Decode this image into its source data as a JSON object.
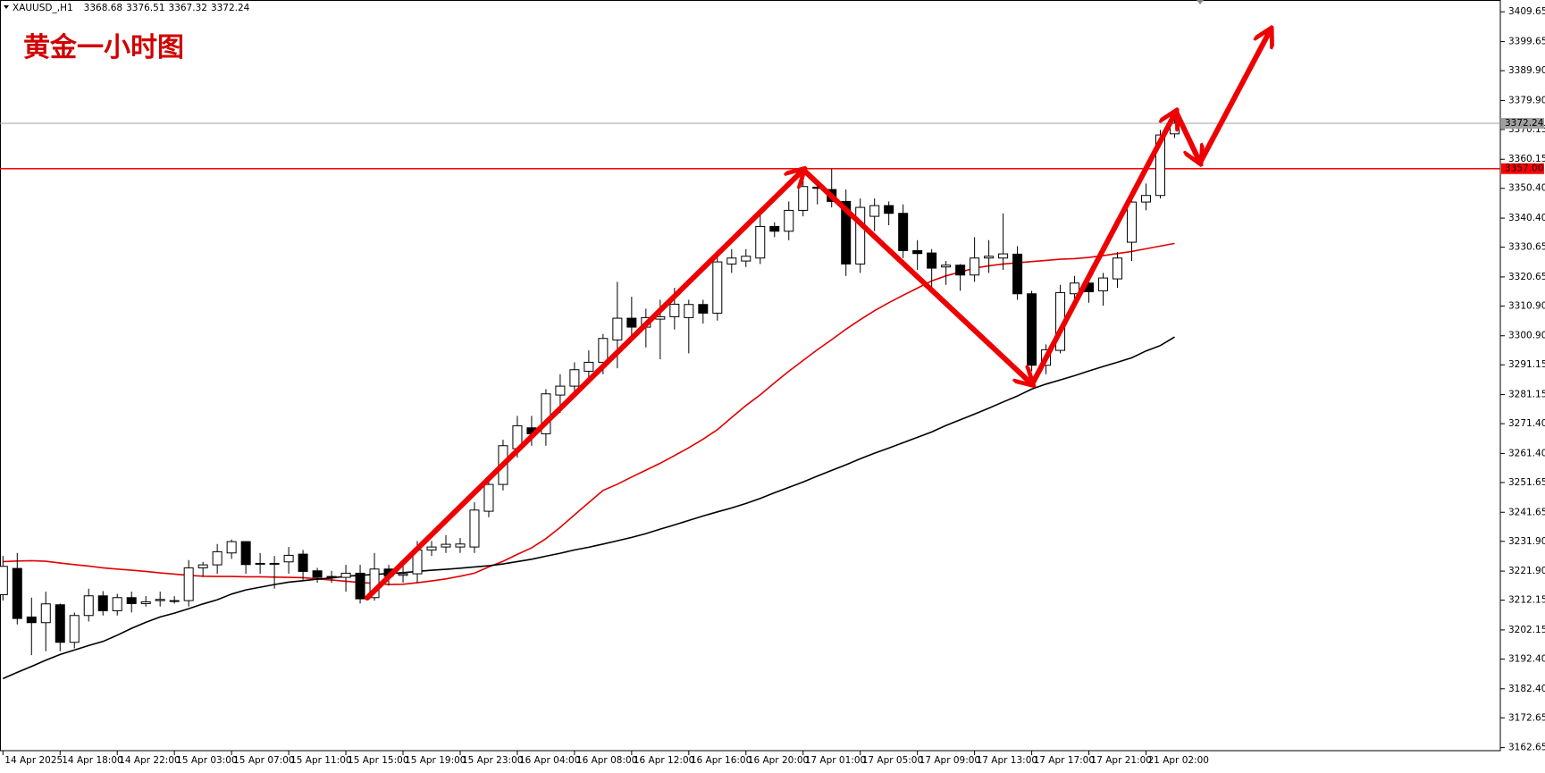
{
  "chart_data": {
    "type": "candlestick",
    "symbol": "XAUUSD_,H1",
    "ohlc": [
      3368.68,
      3376.51,
      3367.32,
      3372.24
    ],
    "title": "黄金一小时图",
    "categories": [
      "14 Apr 2025",
      null,
      null,
      null,
      "14 Apr 18:00",
      null,
      null,
      null,
      "14 Apr 22:00",
      null,
      null,
      null,
      "15 Apr 03:00",
      null,
      null,
      null,
      "15 Apr 07:00",
      null,
      null,
      null,
      "15 Apr 11:00",
      null,
      null,
      null,
      "15 Apr 15:00",
      null,
      null,
      null,
      "15 Apr 19:00",
      null,
      null,
      null,
      "15 Apr 23:00",
      null,
      null,
      null,
      "16 Apr 04:00",
      null,
      null,
      null,
      "16 Apr 08:00",
      null,
      null,
      null,
      "16 Apr 12:00",
      null,
      null,
      null,
      "16 Apr 16:00",
      null,
      null,
      null,
      "16 Apr 20:00",
      null,
      null,
      null,
      "17 Apr 01:00",
      null,
      null,
      null,
      "17 Apr 05:00",
      null,
      null,
      null,
      "17 Apr 09:00",
      null,
      null,
      null,
      "17 Apr 13:00",
      null,
      null,
      null,
      "17 Apr 17:00",
      null,
      null,
      null,
      "17 Apr 21:00",
      null,
      null,
      null,
      "21 Apr 02:00",
      null,
      null
    ],
    "open": [
      3214,
      3222.8,
      3206.5,
      3204.6,
      3210.6,
      3198,
      3207,
      3213.6,
      3208.6,
      3213,
      3211,
      3212,
      3212,
      3212,
      3223,
      3224,
      3228,
      3231.8,
      3224.3,
      3224.5,
      3225,
      3227.6,
      3222,
      3219.8,
      3219.8,
      3221.2,
      3213,
      3222.6,
      3220.5,
      3221,
      3229,
      3230,
      3230,
      3230,
      3242,
      3251,
      3263,
      3270,
      3268,
      3281,
      3284,
      3289,
      3292,
      3299.5,
      3306.8,
      3303.8,
      3306.5,
      3307.3,
      3307,
      3311.4,
      3308.5,
      3325,
      3326,
      3327,
      3337.6,
      3336,
      3343,
      3350.8,
      3350,
      3346,
      3325,
      3341,
      3344.6,
      3342,
      3329.5,
      3328.7,
      3324,
      3324.6,
      3321.3,
      3327,
      3327,
      3328.3,
      3315,
      3291,
      3296,
      3315,
      3318.6,
      3316,
      3320,
      3332.3,
      3345.8,
      3348,
      3368.68
    ],
    "high": [
      3227,
      3228,
      3213,
      3215,
      3211,
      3208,
      3216,
      3215.2,
      3214.3,
      3215,
      3213.5,
      3215,
      3213.5,
      3225.6,
      3225,
      3231,
      3232.5,
      3232,
      3228,
      3227,
      3230,
      3229,
      3223,
      3222,
      3224,
      3224,
      3228,
      3224,
      3224,
      3232,
      3232,
      3234,
      3233,
      3245,
      3252,
      3266,
      3274,
      3274,
      3283,
      3288,
      3292,
      3296,
      3301.5,
      3319,
      3314,
      3310,
      3313,
      3317,
      3313,
      3313,
      3328,
      3330,
      3330,
      3342,
      3339,
      3346,
      3356,
      3351.2,
      3357,
      3350,
      3347,
      3347,
      3346,
      3345,
      3333,
      3330,
      3326,
      3325,
      3334,
      3333,
      3342,
      3331,
      3316,
      3298,
      3318,
      3321,
      3320,
      3322,
      3329,
      3348,
      3352,
      3370,
      3376.51
    ],
    "low": [
      3212,
      3204,
      3193.7,
      3195,
      3195,
      3196,
      3205,
      3207,
      3207,
      3208,
      3210,
      3210,
      3211,
      3210,
      3220,
      3221,
      3226,
      3221,
      3221,
      3216,
      3221,
      3219,
      3218,
      3218,
      3215,
      3211,
      3212,
      3217,
      3218,
      3218,
      3227,
      3228,
      3228,
      3228,
      3240,
      3249,
      3260,
      3264,
      3264,
      3275,
      3281,
      3286,
      3288,
      3290,
      3300,
      3297,
      3293,
      3303,
      3295,
      3305,
      3306,
      3322,
      3324,
      3325,
      3334,
      3333,
      3341,
      3345,
      3344,
      3321,
      3322,
      3336,
      3338,
      3327,
      3323,
      3316,
      3318,
      3316,
      3319,
      3322,
      3323,
      3313,
      3289,
      3288,
      3295,
      3311,
      3312,
      3311,
      3317,
      3326,
      3343,
      3347,
      3367.32
    ],
    "close": [
      3223.5,
      3206,
      3204.6,
      3210.9,
      3198,
      3207,
      3213.6,
      3208.6,
      3213,
      3211,
      3211.6,
      3212.4,
      3212,
      3223,
      3224,
      3228.4,
      3231.8,
      3224.1,
      3224.5,
      3224.2,
      3227.2,
      3221.8,
      3219.8,
      3220.1,
      3221.2,
      3212.6,
      3222.6,
      3220.2,
      3221,
      3229,
      3230,
      3230.9,
      3231,
      3242.4,
      3251,
      3264,
      3270.7,
      3268,
      3281.4,
      3284,
      3289.5,
      3292,
      3300,
      3306.8,
      3303.8,
      3307,
      3307.3,
      3311.5,
      3311.4,
      3308.5,
      3325.7,
      3327,
      3327.6,
      3337.6,
      3336,
      3343,
      3351,
      3350.4,
      3346,
      3325,
      3344,
      3344.6,
      3342,
      3329.5,
      3328.5,
      3323.6,
      3324.6,
      3321.3,
      3327,
      3327.6,
      3328.4,
      3315,
      3291,
      3296.2,
      3315.4,
      3318.6,
      3315.7,
      3320.3,
      3327,
      3345.8,
      3348,
      3368.3,
      3372.24
    ],
    "series": [
      {
        "color": "#e00000",
        "values": [
          3225.1,
          3225.3,
          3225.4,
          3225.2,
          3224.6,
          3224.1,
          3223.6,
          3223.0,
          3222.6,
          3222.2,
          3221.8,
          3221.3,
          3220.9,
          3220.5,
          3220.2,
          3220.1,
          3220.1,
          3220.0,
          3220.0,
          3219.9,
          3219.8,
          3219.7,
          3219.3,
          3218.9,
          3218.5,
          3218.1,
          3217.8,
          3217.4,
          3217.5,
          3218.0,
          3218.6,
          3219.3,
          3220.2,
          3221.2,
          3223.3,
          3225.2,
          3227.5,
          3229.7,
          3232.8,
          3236.6,
          3240.8,
          3244.9,
          3249.0,
          3251.1,
          3253.5,
          3255.8,
          3258.1,
          3260.7,
          3263.3,
          3266.2,
          3269.4,
          3273.5,
          3277.5,
          3281.1,
          3285.1,
          3289.0,
          3292.6,
          3296.2,
          3299.6,
          3303.1,
          3306.3,
          3309.3,
          3312.0,
          3314.5,
          3316.9,
          3319.3,
          3321.0,
          3322.3,
          3323.6,
          3324.4,
          3325.0,
          3325.4,
          3325.8,
          3326.2,
          3326.6,
          3326.8,
          3327.2,
          3327.8,
          3328.5,
          3329.2,
          3330.1,
          3331.0,
          3331.9
        ]
      },
      {
        "color": "#000000",
        "values": [
          3185.8,
          3187.9,
          3189.9,
          3192.0,
          3193.9,
          3195.4,
          3196.9,
          3198.3,
          3200.4,
          3202.7,
          3204.7,
          3206.5,
          3207.8,
          3209.3,
          3210.9,
          3212.3,
          3214.2,
          3215.6,
          3216.5,
          3217.4,
          3218.2,
          3218.7,
          3219.2,
          3219.6,
          3220.2,
          3220.5,
          3220.8,
          3221.1,
          3221.4,
          3221.8,
          3222.2,
          3222.5,
          3222.9,
          3223.3,
          3223.7,
          3224.3,
          3225.1,
          3225.9,
          3226.9,
          3227.9,
          3229.0,
          3229.9,
          3231.0,
          3232.1,
          3233.2,
          3234.5,
          3236.0,
          3237.4,
          3238.9,
          3240.4,
          3241.8,
          3243.1,
          3244.6,
          3246.3,
          3248.2,
          3250.0,
          3251.8,
          3253.8,
          3255.7,
          3257.6,
          3259.6,
          3261.5,
          3263.2,
          3265.0,
          3266.8,
          3268.6,
          3270.8,
          3272.7,
          3274.6,
          3276.6,
          3278.7,
          3280.7,
          3283.0,
          3284.7,
          3286.1,
          3287.5,
          3289.1,
          3290.6,
          3292.0,
          3293.5,
          3295.8,
          3297.6,
          3300.5
        ]
      }
    ],
    "hlines": [
      {
        "value": 3372.24,
        "color": "#a0a0a0"
      },
      {
        "value": 3357,
        "label": "3357.00",
        "color": "#ff0000"
      }
    ],
    "ylim": [
      3161.63,
      3413.62
    ],
    "yticks": [
      3409.65,
      3399.65,
      {
        "value": 3389.9,
        "label": "3389.90"
      },
      {
        "value": 3379.9,
        "label": "3379.90"
      },
      3370.15,
      3360.15,
      {
        "value": 3350.4,
        "label": "3350.40"
      },
      {
        "value": 3340.4,
        "label": "3340.40"
      },
      3330.65,
      3320.65,
      {
        "value": 3310.9,
        "label": "3310.90"
      },
      {
        "value": 3300.9,
        "label": "3300.90"
      },
      3291.15,
      3281.15,
      {
        "value": 3271.4,
        "label": "3271.40"
      },
      {
        "value": 3261.4,
        "label": "3261.40"
      },
      3251.65,
      3241.65,
      {
        "value": 3231.9,
        "label": "3231.90"
      },
      {
        "value": 3221.9,
        "label": "3221.90"
      },
      3212.15,
      3202.15,
      {
        "value": 3192.4,
        "label": "3192.40"
      },
      {
        "value": 3182.4,
        "label": "3182.40"
      },
      3172.65,
      3162.65
    ]
  }
}
